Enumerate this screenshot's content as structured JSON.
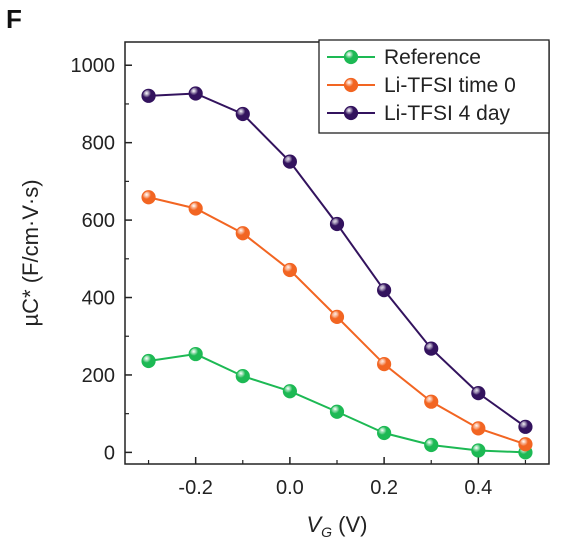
{
  "panel_label": "F",
  "chart_data": {
    "type": "line",
    "title": "",
    "xlabel_main": "V",
    "xlabel_sub": "G",
    "xlabel_unit": " (V)",
    "ylabel": "µC* (F/cm·V·s)",
    "xlim": [
      -0.35,
      0.55
    ],
    "ylim": [
      -30,
      1060
    ],
    "x_ticks": [
      -0.2,
      0.0,
      0.2,
      0.4
    ],
    "x_tick_labels": [
      "-0.2",
      "0.0",
      "0.2",
      "0.4"
    ],
    "y_ticks": [
      0,
      200,
      400,
      600,
      800,
      1000
    ],
    "y_tick_labels": [
      "0",
      "200",
      "400",
      "600",
      "800",
      "1000"
    ],
    "grid": false,
    "legend_position": "top-right",
    "x": [
      -0.3,
      -0.2,
      -0.1,
      0.0,
      0.1,
      0.2,
      0.3,
      0.4,
      0.5
    ],
    "series": [
      {
        "name": "Reference",
        "color": "#1db954",
        "values": [
          236,
          254,
          197,
          158,
          105,
          50,
          19,
          5,
          0
        ]
      },
      {
        "name": "Li-TFSI time 0",
        "color": "#f26522",
        "values": [
          659,
          630,
          566,
          471,
          350,
          228,
          131,
          62,
          21
        ]
      },
      {
        "name": "Li-TFSI 4 day",
        "color": "#33135e",
        "values": [
          921,
          927,
          874,
          751,
          590,
          419,
          268,
          153,
          66
        ]
      }
    ]
  }
}
